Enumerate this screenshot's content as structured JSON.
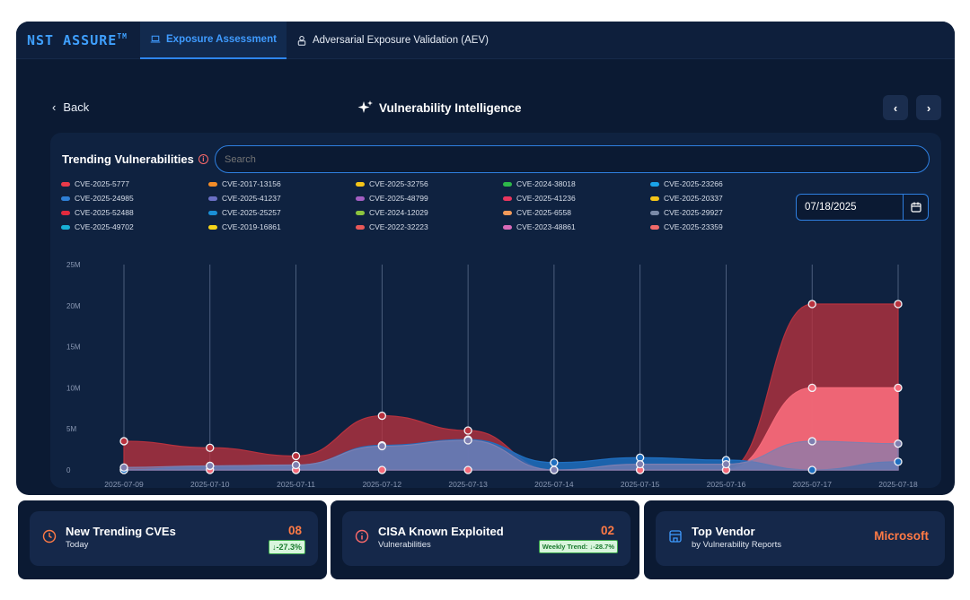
{
  "header": {
    "logo": "NST ASSURE",
    "logo_tm": "TM",
    "tabs": [
      {
        "label": "Exposure Assessment",
        "active": true
      },
      {
        "label": "Adversarial Exposure Validation (AEV)",
        "active": false
      }
    ]
  },
  "page": {
    "back_label": "Back",
    "title": "Vulnerability Intelligence"
  },
  "panel": {
    "title": "Trending Vulnerabilities",
    "search_placeholder": "Search",
    "date": "07/18/2025"
  },
  "chart_data": {
    "type": "area",
    "x": [
      "2025-07-09",
      "2025-07-10",
      "2025-07-11",
      "2025-07-12",
      "2025-07-13",
      "2025-07-14",
      "2025-07-15",
      "2025-07-16",
      "2025-07-17",
      "2025-07-18"
    ],
    "y_ticks": [
      "25M",
      "20M",
      "15M",
      "10M",
      "5M",
      "0"
    ],
    "ylim": [
      0,
      25000000
    ],
    "legend": [
      {
        "name": "CVE-2025-5777",
        "color": "#e83a4a"
      },
      {
        "name": "CVE-2017-13156",
        "color": "#f28c28"
      },
      {
        "name": "CVE-2025-32756",
        "color": "#f5c518"
      },
      {
        "name": "CVE-2024-38018",
        "color": "#2eb84a"
      },
      {
        "name": "CVE-2025-23266",
        "color": "#1aa3e8"
      },
      {
        "name": "CVE-2025-24985",
        "color": "#2e7fd6"
      },
      {
        "name": "CVE-2025-41237",
        "color": "#6a6fc4"
      },
      {
        "name": "CVE-2025-48799",
        "color": "#a35ec2"
      },
      {
        "name": "CVE-2025-41236",
        "color": "#e8365e"
      },
      {
        "name": "CVE-2025-20337",
        "color": "#f5c518"
      },
      {
        "name": "CVE-2025-52488",
        "color": "#e02a3e"
      },
      {
        "name": "CVE-2025-25257",
        "color": "#1a8fd6"
      },
      {
        "name": "CVE-2024-12029",
        "color": "#8cc43e"
      },
      {
        "name": "CVE-2025-6558",
        "color": "#f29a5a"
      },
      {
        "name": "CVE-2025-29927",
        "color": "#7a8aa8"
      },
      {
        "name": "CVE-2025-49702",
        "color": "#18b0d6"
      },
      {
        "name": "CVE-2019-16861",
        "color": "#f5d41a"
      },
      {
        "name": "CVE-2022-32223",
        "color": "#e85858"
      },
      {
        "name": "CVE-2023-48861",
        "color": "#d86ab8"
      },
      {
        "name": "CVE-2025-23359",
        "color": "#f06a6a"
      }
    ],
    "series": [
      {
        "color": "#b8323e",
        "values": [
          3500000,
          2700000,
          1700000,
          6600000,
          4800000,
          0,
          0,
          0,
          20200000,
          20200000
        ]
      },
      {
        "color": "#f56a7a",
        "values": [
          0,
          0,
          0,
          0,
          0,
          0,
          0,
          0,
          10000000,
          10000000
        ]
      },
      {
        "color": "#1f6fc0",
        "values": [
          0,
          500000,
          600000,
          3000000,
          3700000,
          900000,
          1500000,
          1200000,
          0,
          1000000
        ]
      },
      {
        "color": "#7f7fb0",
        "values": [
          300000,
          500000,
          600000,
          2900000,
          3600000,
          0,
          700000,
          700000,
          3500000,
          3200000
        ]
      }
    ]
  },
  "cards": [
    {
      "title": "New Trending CVEs",
      "sub": "Today",
      "value": "08",
      "trend": "↓-27.3%"
    },
    {
      "title": "CISA Known Exploited",
      "sub": "Vulnerabilities",
      "value": "02",
      "trend": "Weekly Trend: ↓-28.7%"
    },
    {
      "title": "Top Vendor",
      "sub": "by Vulnerability Reports",
      "value": "Microsoft"
    }
  ]
}
